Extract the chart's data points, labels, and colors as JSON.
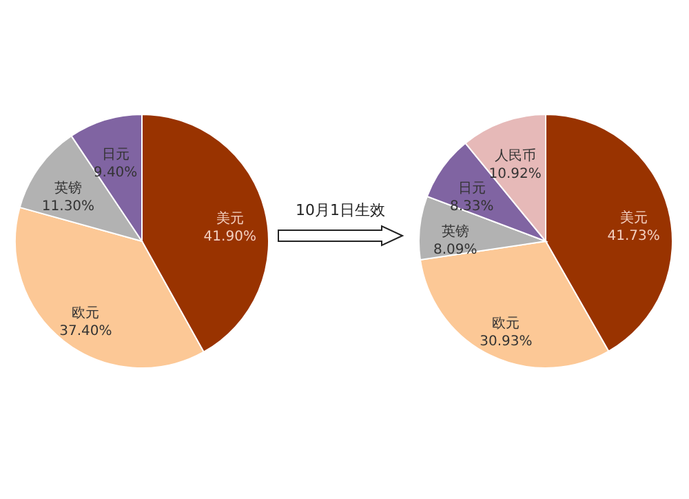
{
  "chart_data": [
    {
      "type": "pie",
      "categories": [
        "美元",
        "欧元",
        "英镑",
        "日元"
      ],
      "values": [
        41.9,
        37.4,
        11.3,
        9.4
      ],
      "colors": [
        "#993300",
        "#fcc896",
        "#b2b2b2",
        "#8064a2"
      ],
      "value_labels": [
        "41.90%",
        "37.40%",
        "11.30%",
        "9.40%"
      ]
    },
    {
      "type": "pie",
      "categories": [
        "美元",
        "欧元",
        "英镑",
        "日元",
        "人民币"
      ],
      "values": [
        41.73,
        30.93,
        8.09,
        8.33,
        10.92
      ],
      "colors": [
        "#993300",
        "#fcc896",
        "#b2b2b2",
        "#8064a2",
        "#e6b9b8"
      ],
      "value_labels": [
        "41.73%",
        "30.93%",
        "8.09%",
        "8.33%",
        "10.92%"
      ],
      "annotations": [
        "10月1日生效"
      ]
    }
  ]
}
